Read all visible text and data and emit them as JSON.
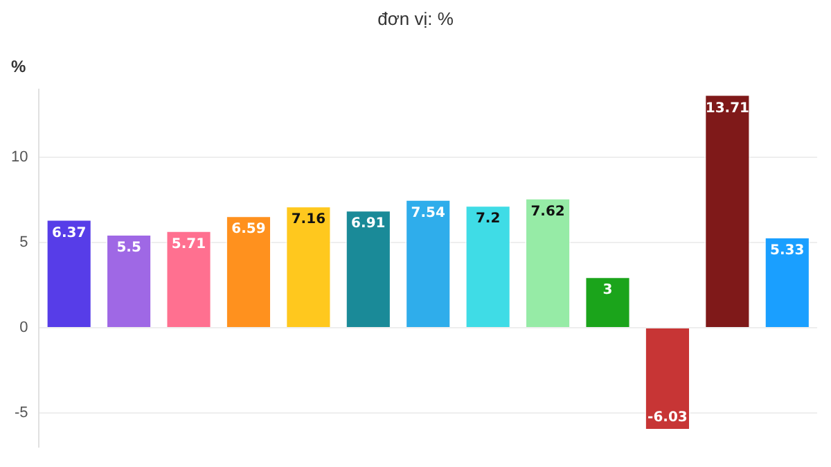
{
  "chart_data": {
    "type": "bar",
    "title": "đơn vị: %",
    "ylabel": "%",
    "categories": [
      null,
      null,
      null,
      null,
      null,
      null,
      null,
      null,
      null,
      null,
      null,
      null,
      null
    ],
    "values": [
      6.37,
      5.5,
      5.71,
      6.59,
      7.16,
      6.91,
      7.54,
      7.2,
      7.62,
      3,
      -6.03,
      13.71,
      5.33
    ],
    "colors": [
      "#573de8",
      "#9f68e5",
      "#ff7090",
      "#ff911e",
      "#ffc81e",
      "#1a8a98",
      "#2fadeb",
      "#3fdce6",
      "#96eba6",
      "#1ba41b",
      "#c73535",
      "#7f1919",
      "#1a9fff"
    ],
    "ylim": [
      -7,
      14
    ],
    "yticks": [
      -5,
      0,
      5,
      10
    ],
    "grid": "y",
    "data_labels": true
  }
}
